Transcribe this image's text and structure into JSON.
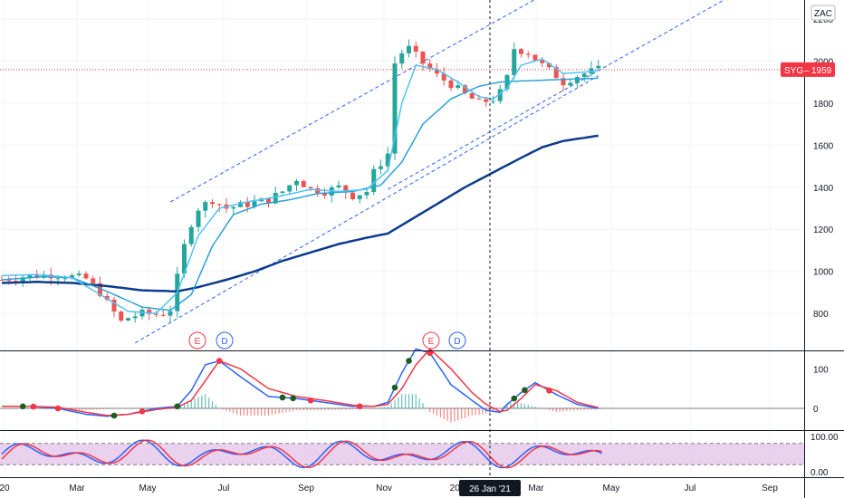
{
  "currency_label": "ZAC",
  "symbol": "SYG",
  "last_price": "1959",
  "cursor_date": "26 Jan '21",
  "x_axis_labels": [
    "20",
    "Mar",
    "May",
    "Jul",
    "Sep",
    "Nov",
    "202",
    "Mar",
    "May",
    "Jul",
    "Sep"
  ],
  "events": [
    "E",
    "D",
    "E",
    "D"
  ],
  "colors": {
    "up": "#26a69a",
    "down": "#ef5350",
    "ma_fast": "#4fc3f7",
    "ma_mid": "#29a3d6",
    "ma_slow": "#0d3b8c",
    "channel": "#2962ff",
    "macd": "#2962ff",
    "signal": "#f23645",
    "stoch_band": "#e1bee7",
    "badge": "#f23645",
    "cursor": "#131722"
  },
  "chart_data": [
    {
      "type": "candlestick",
      "y_ticks": [
        "800",
        "1000",
        "1200",
        "1400",
        "1600",
        "1800",
        "2000",
        "2200"
      ],
      "ylim": [
        640,
        2270
      ],
      "price_path": [
        [
          0,
          960
        ],
        [
          3,
          975
        ],
        [
          7,
          985
        ],
        [
          9,
          980
        ],
        [
          12,
          965
        ],
        [
          14,
          900
        ],
        [
          15,
          850
        ],
        [
          16,
          805
        ],
        [
          17,
          760
        ],
        [
          18,
          780
        ],
        [
          19,
          790
        ],
        [
          20,
          800
        ],
        [
          22,
          795
        ],
        [
          23,
          800
        ],
        [
          24,
          820
        ],
        [
          26,
          1120
        ],
        [
          27,
          1230
        ],
        [
          28,
          1300
        ],
        [
          30,
          1340
        ],
        [
          32,
          1300
        ],
        [
          35,
          1320
        ],
        [
          38,
          1340
        ],
        [
          40,
          1380
        ],
        [
          42,
          1440
        ],
        [
          44,
          1390
        ],
        [
          46,
          1380
        ],
        [
          48,
          1400
        ],
        [
          50,
          1360
        ],
        [
          52,
          1380
        ],
        [
          53,
          1470
        ],
        [
          55,
          1560
        ],
        [
          56,
          1990
        ],
        [
          57,
          2040
        ],
        [
          58,
          2060
        ],
        [
          60,
          1990
        ],
        [
          62,
          1930
        ],
        [
          64,
          1890
        ],
        [
          66,
          1840
        ],
        [
          68,
          1800
        ],
        [
          70,
          1820
        ],
        [
          71,
          1850
        ],
        [
          72,
          1920
        ],
        [
          73,
          2060
        ],
        [
          75,
          2040
        ],
        [
          77,
          1980
        ],
        [
          79,
          1930
        ],
        [
          80,
          1900
        ],
        [
          82,
          1930
        ],
        [
          84,
          1950
        ],
        [
          85,
          1959
        ]
      ],
      "ma_fast_path": [
        [
          0,
          980
        ],
        [
          5,
          985
        ],
        [
          10,
          970
        ],
        [
          14,
          890
        ],
        [
          18,
          810
        ],
        [
          22,
          800
        ],
        [
          25,
          900
        ],
        [
          28,
          1170
        ],
        [
          31,
          1300
        ],
        [
          35,
          1330
        ],
        [
          40,
          1360
        ],
        [
          44,
          1390
        ],
        [
          48,
          1380
        ],
        [
          52,
          1390
        ],
        [
          55,
          1480
        ],
        [
          57,
          1800
        ],
        [
          59,
          1980
        ],
        [
          62,
          1960
        ],
        [
          65,
          1900
        ],
        [
          68,
          1830
        ],
        [
          70,
          1820
        ],
        [
          72,
          1870
        ],
        [
          74,
          1980
        ],
        [
          77,
          2010
        ],
        [
          80,
          1940
        ],
        [
          84,
          1950
        ],
        [
          85,
          1955
        ]
      ],
      "ma_mid_path": [
        [
          0,
          960
        ],
        [
          6,
          975
        ],
        [
          10,
          970
        ],
        [
          15,
          905
        ],
        [
          20,
          830
        ],
        [
          24,
          815
        ],
        [
          27,
          890
        ],
        [
          30,
          1120
        ],
        [
          33,
          1270
        ],
        [
          37,
          1320
        ],
        [
          41,
          1340
        ],
        [
          45,
          1370
        ],
        [
          50,
          1380
        ],
        [
          54,
          1410
        ],
        [
          57,
          1520
        ],
        [
          60,
          1700
        ],
        [
          64,
          1820
        ],
        [
          68,
          1880
        ],
        [
          71,
          1900
        ],
        [
          74,
          1905
        ],
        [
          78,
          1910
        ],
        [
          82,
          1915
        ],
        [
          85,
          1918
        ]
      ],
      "ma_slow_path": [
        [
          0,
          945
        ],
        [
          5,
          950
        ],
        [
          10,
          945
        ],
        [
          15,
          930
        ],
        [
          20,
          910
        ],
        [
          25,
          905
        ],
        [
          28,
          925
        ],
        [
          32,
          960
        ],
        [
          36,
          1000
        ],
        [
          40,
          1050
        ],
        [
          44,
          1090
        ],
        [
          48,
          1130
        ],
        [
          52,
          1160
        ],
        [
          55,
          1180
        ],
        [
          58,
          1240
        ],
        [
          62,
          1320
        ],
        [
          66,
          1400
        ],
        [
          70,
          1470
        ],
        [
          74,
          1540
        ],
        [
          77,
          1590
        ],
        [
          80,
          1620
        ],
        [
          85,
          1645
        ]
      ],
      "channel_lower": [
        [
          19,
          660
        ],
        [
          85,
          1930
        ]
      ],
      "channel_upper": [
        [
          24,
          1330
        ],
        [
          78,
          2330
        ]
      ],
      "channel_mid": [
        [
          55,
          1390
        ],
        [
          105,
          2330
        ]
      ],
      "candle_count": 86
    },
    {
      "type": "line",
      "name_hidden": true,
      "y_ticks": [
        "100",
        "0"
      ],
      "ylim": [
        -25,
        160
      ],
      "macd_path": [
        [
          0,
          5
        ],
        [
          4,
          5
        ],
        [
          8,
          0
        ],
        [
          12,
          -15
        ],
        [
          15,
          -20
        ],
        [
          18,
          -15
        ],
        [
          22,
          0
        ],
        [
          25,
          5
        ],
        [
          27,
          45
        ],
        [
          29,
          110
        ],
        [
          31,
          120
        ],
        [
          34,
          80
        ],
        [
          38,
          30
        ],
        [
          42,
          25
        ],
        [
          46,
          15
        ],
        [
          50,
          5
        ],
        [
          53,
          5
        ],
        [
          55,
          15
        ],
        [
          57,
          90
        ],
        [
          59,
          150
        ],
        [
          61,
          140
        ],
        [
          64,
          60
        ],
        [
          67,
          20
        ],
        [
          69,
          -5
        ],
        [
          71,
          -10
        ],
        [
          72,
          10
        ],
        [
          74,
          40
        ],
        [
          76,
          65
        ],
        [
          79,
          35
        ],
        [
          82,
          10
        ],
        [
          85,
          0
        ]
      ],
      "signal_path": [
        [
          0,
          5
        ],
        [
          4,
          5
        ],
        [
          8,
          3
        ],
        [
          12,
          -10
        ],
        [
          15,
          -18
        ],
        [
          18,
          -15
        ],
        [
          22,
          -3
        ],
        [
          25,
          3
        ],
        [
          27,
          20
        ],
        [
          29,
          70
        ],
        [
          31,
          120
        ],
        [
          34,
          100
        ],
        [
          38,
          50
        ],
        [
          42,
          30
        ],
        [
          46,
          20
        ],
        [
          50,
          8
        ],
        [
          53,
          5
        ],
        [
          55,
          10
        ],
        [
          57,
          50
        ],
        [
          59,
          110
        ],
        [
          61,
          150
        ],
        [
          64,
          100
        ],
        [
          67,
          40
        ],
        [
          69,
          10
        ],
        [
          71,
          -8
        ],
        [
          72,
          -5
        ],
        [
          74,
          25
        ],
        [
          76,
          60
        ],
        [
          79,
          45
        ],
        [
          82,
          15
        ],
        [
          85,
          2
        ]
      ]
    },
    {
      "type": "line",
      "y_ticks": [
        "100.00",
        "0.00"
      ],
      "ylim": [
        -15,
        115
      ],
      "band": [
        20,
        80
      ]
    }
  ]
}
